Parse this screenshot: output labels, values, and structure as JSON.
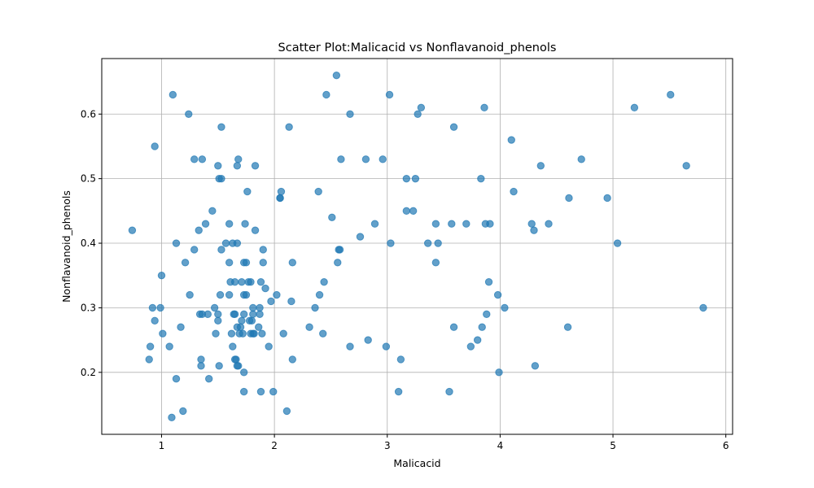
{
  "chart_data": {
    "type": "scatter",
    "title": "Scatter Plot:Malicacid vs Nonflavanoid_phenols",
    "xlabel": "Malicacid",
    "ylabel": "Nonflavanoid_phenols",
    "xlim": [
      0.47,
      6.06
    ],
    "ylim": [
      0.104,
      0.686
    ],
    "xticks": [
      1,
      2,
      3,
      4,
      5,
      6
    ],
    "yticks": [
      0.2,
      0.3,
      0.4,
      0.5,
      0.6
    ],
    "grid": true,
    "color": "#1f77b4",
    "points": [
      [
        0.74,
        0.42
      ],
      [
        0.89,
        0.22
      ],
      [
        0.9,
        0.24
      ],
      [
        0.92,
        0.3
      ],
      [
        0.94,
        0.55
      ],
      [
        0.94,
        0.28
      ],
      [
        0.99,
        0.3
      ],
      [
        1.0,
        0.35
      ],
      [
        1.01,
        0.26
      ],
      [
        1.07,
        0.24
      ],
      [
        1.09,
        0.13
      ],
      [
        1.1,
        0.63
      ],
      [
        1.13,
        0.4
      ],
      [
        1.13,
        0.19
      ],
      [
        1.17,
        0.27
      ],
      [
        1.19,
        0.14
      ],
      [
        1.21,
        0.37
      ],
      [
        1.24,
        0.6
      ],
      [
        1.25,
        0.32
      ],
      [
        1.29,
        0.53
      ],
      [
        1.29,
        0.39
      ],
      [
        1.33,
        0.42
      ],
      [
        1.34,
        0.29
      ],
      [
        1.35,
        0.21
      ],
      [
        1.35,
        0.22
      ],
      [
        1.36,
        0.53
      ],
      [
        1.36,
        0.29
      ],
      [
        1.39,
        0.43
      ],
      [
        1.41,
        0.29
      ],
      [
        1.42,
        0.19
      ],
      [
        1.45,
        0.45
      ],
      [
        1.47,
        0.3
      ],
      [
        1.48,
        0.26
      ],
      [
        1.5,
        0.29
      ],
      [
        1.5,
        0.28
      ],
      [
        1.5,
        0.52
      ],
      [
        1.51,
        0.5
      ],
      [
        1.51,
        0.21
      ],
      [
        1.52,
        0.32
      ],
      [
        1.53,
        0.58
      ],
      [
        1.53,
        0.5
      ],
      [
        1.53,
        0.39
      ],
      [
        1.57,
        0.4
      ],
      [
        1.6,
        0.37
      ],
      [
        1.6,
        0.32
      ],
      [
        1.6,
        0.43
      ],
      [
        1.61,
        0.34
      ],
      [
        1.62,
        0.26
      ],
      [
        1.63,
        0.24
      ],
      [
        1.63,
        0.4
      ],
      [
        1.64,
        0.29
      ],
      [
        1.65,
        0.34
      ],
      [
        1.65,
        0.29
      ],
      [
        1.65,
        0.22
      ],
      [
        1.66,
        0.22
      ],
      [
        1.67,
        0.27
      ],
      [
        1.67,
        0.21
      ],
      [
        1.67,
        0.4
      ],
      [
        1.67,
        0.52
      ],
      [
        1.68,
        0.53
      ],
      [
        1.68,
        0.21
      ],
      [
        1.69,
        0.26
      ],
      [
        1.7,
        0.27
      ],
      [
        1.71,
        0.28
      ],
      [
        1.71,
        0.34
      ],
      [
        1.72,
        0.26
      ],
      [
        1.73,
        0.37
      ],
      [
        1.73,
        0.32
      ],
      [
        1.73,
        0.2
      ],
      [
        1.73,
        0.17
      ],
      [
        1.73,
        0.29
      ],
      [
        1.74,
        0.43
      ],
      [
        1.75,
        0.37
      ],
      [
        1.75,
        0.32
      ],
      [
        1.76,
        0.48
      ],
      [
        1.77,
        0.34
      ],
      [
        1.78,
        0.28
      ],
      [
        1.79,
        0.26
      ],
      [
        1.79,
        0.34
      ],
      [
        1.8,
        0.28
      ],
      [
        1.81,
        0.29
      ],
      [
        1.81,
        0.3
      ],
      [
        1.81,
        0.26
      ],
      [
        1.82,
        0.26
      ],
      [
        1.83,
        0.52
      ],
      [
        1.83,
        0.42
      ],
      [
        1.86,
        0.27
      ],
      [
        1.87,
        0.3
      ],
      [
        1.87,
        0.29
      ],
      [
        1.88,
        0.34
      ],
      [
        1.88,
        0.17
      ],
      [
        1.89,
        0.26
      ],
      [
        1.9,
        0.37
      ],
      [
        1.9,
        0.39
      ],
      [
        1.92,
        0.33
      ],
      [
        1.95,
        0.24
      ],
      [
        1.97,
        0.31
      ],
      [
        1.99,
        0.17
      ],
      [
        2.02,
        0.32
      ],
      [
        2.05,
        0.47
      ],
      [
        2.05,
        0.47
      ],
      [
        2.06,
        0.48
      ],
      [
        2.08,
        0.26
      ],
      [
        2.11,
        0.14
      ],
      [
        2.13,
        0.58
      ],
      [
        2.15,
        0.31
      ],
      [
        2.16,
        0.37
      ],
      [
        2.16,
        0.22
      ],
      [
        2.31,
        0.27
      ],
      [
        2.36,
        0.3
      ],
      [
        2.39,
        0.48
      ],
      [
        2.4,
        0.32
      ],
      [
        2.43,
        0.26
      ],
      [
        2.44,
        0.34
      ],
      [
        2.46,
        0.63
      ],
      [
        2.51,
        0.44
      ],
      [
        2.55,
        0.66
      ],
      [
        2.56,
        0.37
      ],
      [
        2.57,
        0.39
      ],
      [
        2.58,
        0.39
      ],
      [
        2.59,
        0.53
      ],
      [
        2.67,
        0.6
      ],
      [
        2.67,
        0.24
      ],
      [
        2.76,
        0.41
      ],
      [
        2.81,
        0.53
      ],
      [
        2.83,
        0.25
      ],
      [
        2.89,
        0.43
      ],
      [
        2.96,
        0.53
      ],
      [
        2.99,
        0.24
      ],
      [
        3.02,
        0.63
      ],
      [
        3.03,
        0.4
      ],
      [
        3.1,
        0.17
      ],
      [
        3.12,
        0.22
      ],
      [
        3.17,
        0.5
      ],
      [
        3.17,
        0.45
      ],
      [
        3.23,
        0.45
      ],
      [
        3.25,
        0.5
      ],
      [
        3.27,
        0.6
      ],
      [
        3.3,
        0.61
      ],
      [
        3.36,
        0.4
      ],
      [
        3.43,
        0.43
      ],
      [
        3.43,
        0.37
      ],
      [
        3.45,
        0.4
      ],
      [
        3.55,
        0.17
      ],
      [
        3.57,
        0.43
      ],
      [
        3.59,
        0.58
      ],
      [
        3.59,
        0.27
      ],
      [
        3.7,
        0.43
      ],
      [
        3.74,
        0.24
      ],
      [
        3.8,
        0.25
      ],
      [
        3.83,
        0.5
      ],
      [
        3.84,
        0.27
      ],
      [
        3.86,
        0.61
      ],
      [
        3.87,
        0.43
      ],
      [
        3.88,
        0.29
      ],
      [
        3.9,
        0.34
      ],
      [
        3.91,
        0.43
      ],
      [
        3.98,
        0.32
      ],
      [
        3.99,
        0.2
      ],
      [
        4.04,
        0.3
      ],
      [
        4.1,
        0.56
      ],
      [
        4.12,
        0.48
      ],
      [
        4.28,
        0.43
      ],
      [
        4.3,
        0.42
      ],
      [
        4.31,
        0.21
      ],
      [
        4.36,
        0.52
      ],
      [
        4.43,
        0.43
      ],
      [
        4.6,
        0.27
      ],
      [
        4.61,
        0.47
      ],
      [
        4.72,
        0.53
      ],
      [
        4.95,
        0.47
      ],
      [
        5.04,
        0.4
      ],
      [
        5.19,
        0.61
      ],
      [
        5.51,
        0.63
      ],
      [
        5.65,
        0.52
      ],
      [
        5.8,
        0.3
      ]
    ]
  }
}
